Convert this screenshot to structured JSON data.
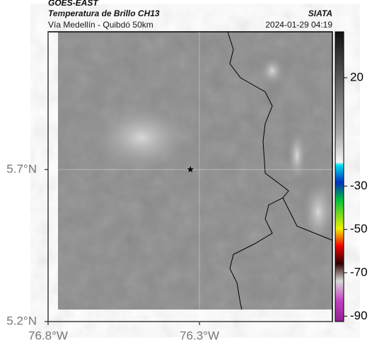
{
  "header": {
    "source": "GOES-EAST",
    "title": "Temperatura de Brillo CH13",
    "agency": "SIATA",
    "subtitle": "Vía Medellín - Quibdó 50km",
    "date": "2024-01-29 04:19"
  },
  "map": {
    "xlim": [
      -76.8,
      -75.861
    ],
    "ylim": [
      5.2,
      6.153
    ],
    "xticks": [
      {
        "value": -76.8,
        "label": "76.8°W"
      },
      {
        "value": -76.3,
        "label": "76.3°W"
      }
    ],
    "yticks": [
      {
        "value": 5.2,
        "label": "5.2°N"
      },
      {
        "value": 5.7,
        "label": "5.7°N"
      }
    ],
    "marker": {
      "lon": -76.33,
      "lat": 5.7
    }
  },
  "colorbar": {
    "lim": [
      -92.5,
      41.2
    ],
    "ticks": [
      20,
      -30,
      -50,
      -70,
      -90
    ]
  }
}
